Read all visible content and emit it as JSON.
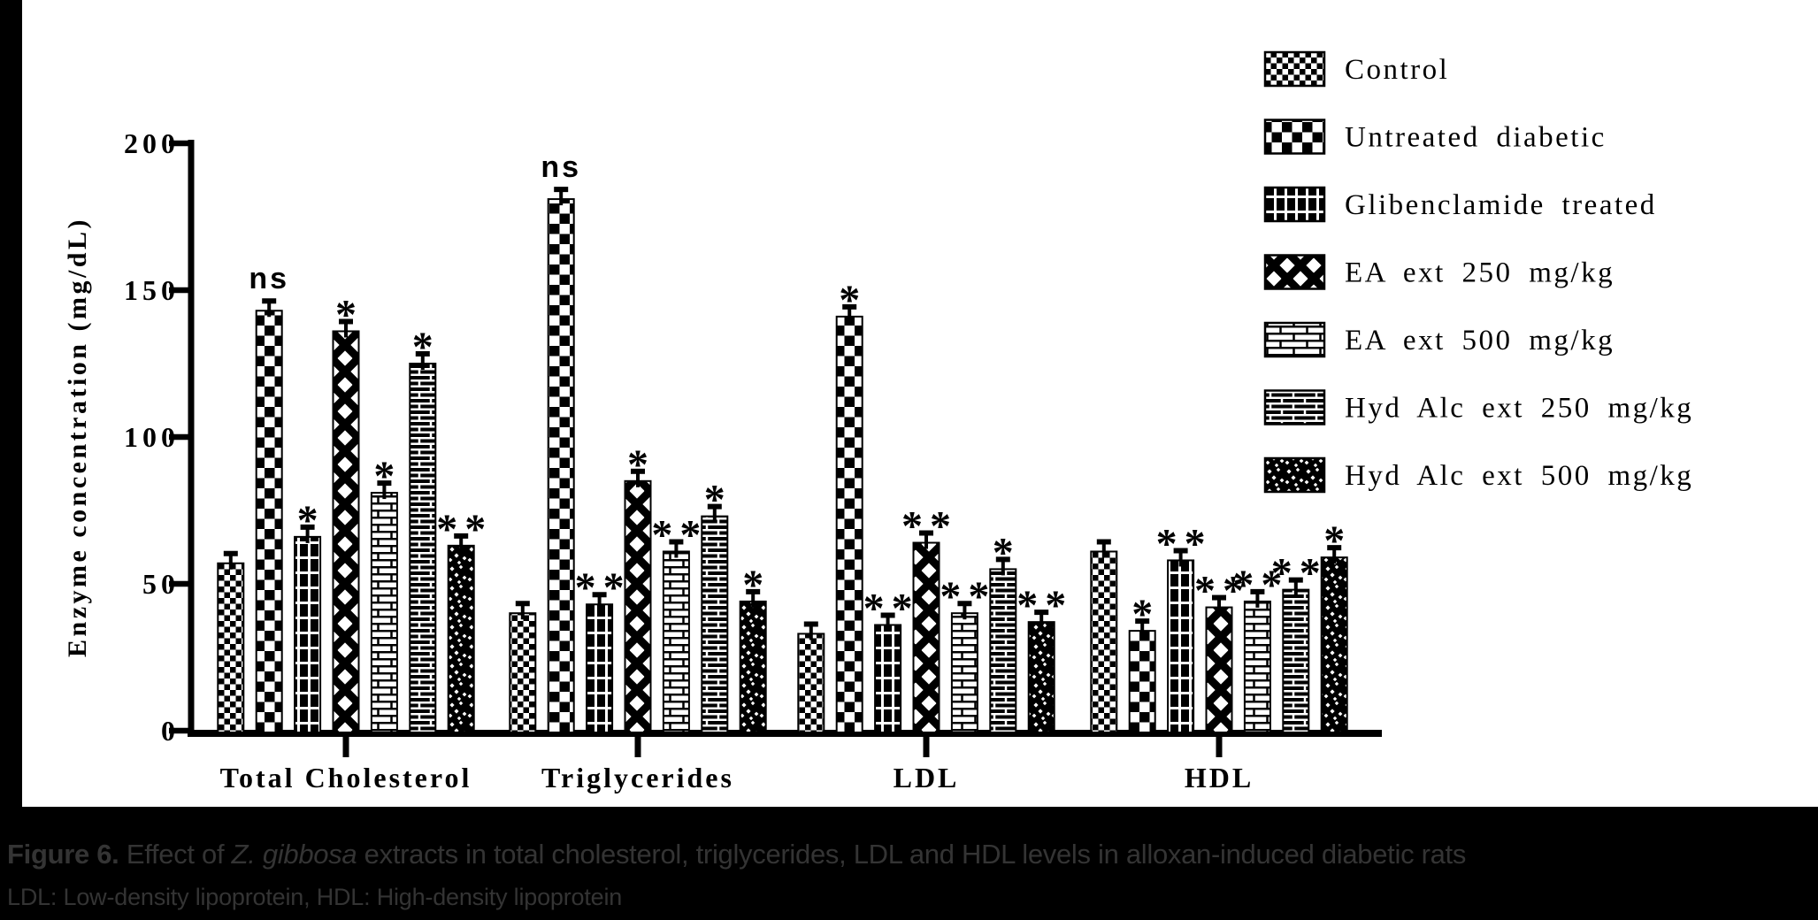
{
  "colors": {
    "background": "#000000",
    "panel": "#ffffff",
    "ink": "#000000",
    "caption_text": "#343434"
  },
  "chart_data": {
    "type": "bar",
    "title": "",
    "xlabel": "",
    "ylabel": "Enzyme concentration (mg/dL)",
    "ylim": [
      0,
      200
    ],
    "yticks": [
      0,
      50,
      100,
      150,
      200
    ],
    "grid": false,
    "legend_position": "top-right",
    "categories": [
      "Total Cholesterol",
      "Triglycerides",
      "LDL",
      "HDL"
    ],
    "error_bar_units": 3,
    "series": [
      {
        "name": "Control",
        "pattern": "fine-checker",
        "values": [
          57,
          40,
          33,
          61
        ],
        "sig": [
          "",
          "",
          "",
          ""
        ]
      },
      {
        "name": "Untreated diabetic",
        "pattern": "coarse-checker",
        "values": [
          143,
          181,
          141,
          34
        ],
        "sig": [
          "ns",
          "ns",
          "*",
          "*"
        ]
      },
      {
        "name": "Glibenclamide treated",
        "pattern": "black-grid",
        "values": [
          66,
          43,
          36,
          58
        ],
        "sig": [
          "*",
          "**",
          "**",
          "**"
        ]
      },
      {
        "name": "EA ext 250 mg/kg",
        "pattern": "x-weave",
        "values": [
          136,
          85,
          64,
          42
        ],
        "sig": [
          "*",
          "*",
          "**",
          "**"
        ]
      },
      {
        "name": "EA ext 500 mg/kg",
        "pattern": "light-brick",
        "values": [
          81,
          61,
          40,
          44
        ],
        "sig": [
          "*",
          "**",
          "**",
          "**"
        ]
      },
      {
        "name": "Hyd Alc ext 250 mg/kg",
        "pattern": "dark-brick",
        "values": [
          125,
          73,
          55,
          48
        ],
        "sig": [
          "*",
          "*",
          "*",
          "**"
        ]
      },
      {
        "name": "Hyd Alc ext 500 mg/kg",
        "pattern": "dark-dots",
        "values": [
          63,
          44,
          37,
          59
        ],
        "sig": [
          "**",
          "*",
          "**",
          "*"
        ]
      }
    ]
  },
  "caption": {
    "figure_label": "Figure 6.",
    "text_before_species": " Effect of ",
    "species": "Z. gibbosa",
    "text_after_species": " extracts in total cholesterol, triglycerides, LDL and HDL levels in alloxan-induced diabetic rats",
    "line2": "LDL: Low-density lipoprotein, HDL: High-density lipoprotein"
  }
}
